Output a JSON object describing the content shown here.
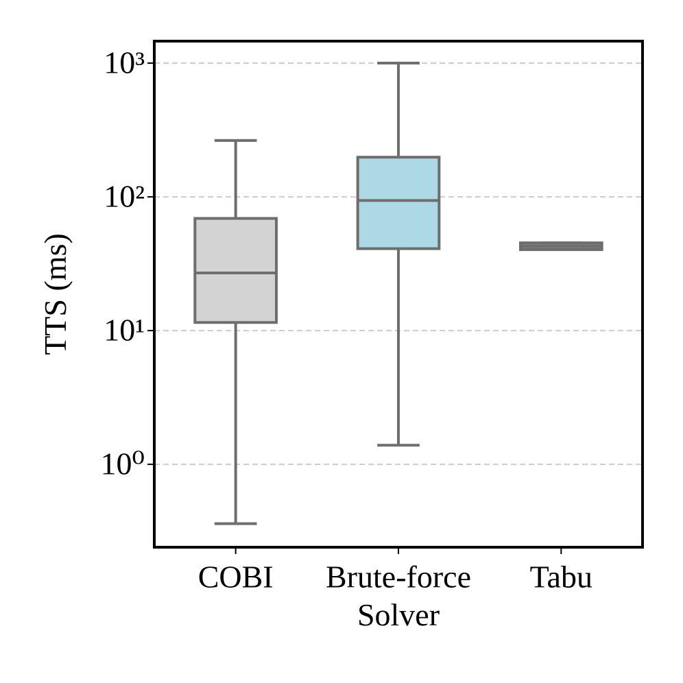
{
  "chart_data": {
    "type": "box",
    "x_label": "Solver",
    "y_label": "TTS (ms)",
    "categories": [
      "COBI",
      "Brute-force",
      "Tabu"
    ],
    "boxes": [
      {
        "whislo": 0.36,
        "q1": 11.5,
        "med": 27,
        "q3": 69,
        "whishi": 264
      },
      {
        "whislo": 1.39,
        "q1": 41,
        "med": 94,
        "q3": 198,
        "whishi": 1000
      },
      {
        "whislo": 40.3,
        "q1": 40.3,
        "med": 42.7,
        "q3": 45.3,
        "whishi": 45.3
      }
    ],
    "colors": [
      "#d3d3d3",
      "#add8e6",
      "#808080"
    ],
    "edge_color": "#6e6e6e",
    "log": true,
    "ylim": [
      0.24,
      1460
    ],
    "yticks": [
      {
        "value": 1,
        "label": "10⁰"
      },
      {
        "value": 10,
        "label": "10¹"
      },
      {
        "value": 100,
        "label": "10²"
      },
      {
        "value": 1000,
        "label": "10³"
      }
    ],
    "grid": true
  }
}
